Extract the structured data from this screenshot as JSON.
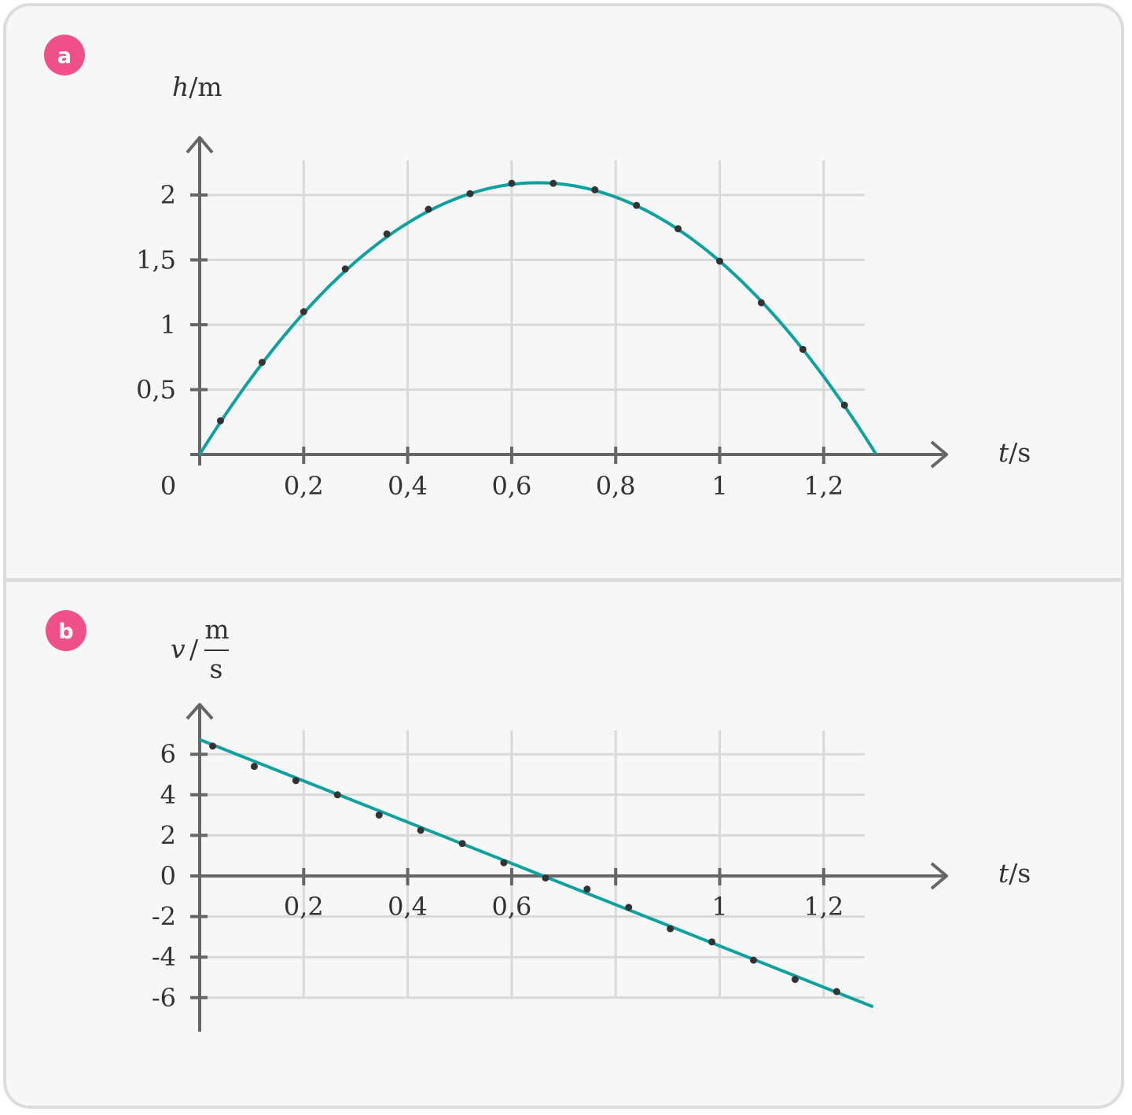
{
  "colors": {
    "curve": "#0fa0a0",
    "points": "#333333",
    "axis": "#666666",
    "grid": "#d9d9d9",
    "badge": "#f0508a"
  },
  "chart_data": [
    {
      "id": "a",
      "badge": "a",
      "type": "scatter",
      "title": "",
      "xlabel": {
        "symbol": "t",
        "unit": "s"
      },
      "ylabel": {
        "symbol": "h",
        "unit": "m"
      },
      "xlim": [
        0,
        1.35
      ],
      "ylim": [
        0,
        2.2
      ],
      "grid": true,
      "origin_label": "0",
      "xticks": [
        0.2,
        0.4,
        0.6,
        0.8,
        1.0,
        1.2
      ],
      "xtick_labels": [
        "0,2",
        "0,4",
        "0,6",
        "0,8",
        "1",
        "1,2"
      ],
      "yticks": [
        0.5,
        1.0,
        1.5,
        2.0
      ],
      "ytick_labels": [
        "0,5",
        "1",
        "1,5",
        "2"
      ],
      "points": [
        {
          "t": 0.04,
          "h": 0.26
        },
        {
          "t": 0.12,
          "h": 0.71
        },
        {
          "t": 0.2,
          "h": 1.1
        },
        {
          "t": 0.28,
          "h": 1.43
        },
        {
          "t": 0.36,
          "h": 1.7
        },
        {
          "t": 0.44,
          "h": 1.89
        },
        {
          "t": 0.52,
          "h": 2.01
        },
        {
          "t": 0.6,
          "h": 2.09
        },
        {
          "t": 0.68,
          "h": 2.09
        },
        {
          "t": 0.76,
          "h": 2.04
        },
        {
          "t": 0.84,
          "h": 1.92
        },
        {
          "t": 0.92,
          "h": 1.74
        },
        {
          "t": 1.0,
          "h": 1.49
        },
        {
          "t": 1.08,
          "h": 1.17
        },
        {
          "t": 1.16,
          "h": 0.81
        },
        {
          "t": 1.24,
          "h": 0.38
        }
      ],
      "fit": {
        "type": "quadratic",
        "a": -4.95,
        "b": 6.44,
        "c": 0,
        "x_range": [
          0,
          1.3
        ]
      }
    },
    {
      "id": "b",
      "badge": "b",
      "type": "scatter",
      "title": "",
      "xlabel": {
        "symbol": "t",
        "unit": "s"
      },
      "ylabel": {
        "symbol": "v",
        "unit_num": "m",
        "unit_den": "s"
      },
      "xlim": [
        0,
        1.35
      ],
      "ylim": [
        -7.6,
        8.2
      ],
      "grid": true,
      "xticks": [
        0.2,
        0.4,
        0.6,
        1.0,
        1.2
      ],
      "xtick_labels": [
        "0,2",
        "0,4",
        "0,6",
        "1",
        "1,2"
      ],
      "grid_x": [
        0.2,
        0.4,
        0.6,
        0.8,
        1.0,
        1.2
      ],
      "yticks": [
        6,
        4,
        2,
        0,
        -2,
        -4,
        -6
      ],
      "ytick_labels": [
        "6",
        "4",
        "2",
        "0",
        "-2",
        "-4",
        "-6"
      ],
      "points": [
        {
          "t": 0.025,
          "v": 6.4
        },
        {
          "t": 0.105,
          "v": 5.4
        },
        {
          "t": 0.185,
          "v": 4.7
        },
        {
          "t": 0.265,
          "v": 4.0
        },
        {
          "t": 0.345,
          "v": 3.0
        },
        {
          "t": 0.425,
          "v": 2.25
        },
        {
          "t": 0.505,
          "v": 1.6
        },
        {
          "t": 0.585,
          "v": 0.65
        },
        {
          "t": 0.665,
          "v": -0.1
        },
        {
          "t": 0.745,
          "v": -0.65
        },
        {
          "t": 0.825,
          "v": -1.55
        },
        {
          "t": 0.905,
          "v": -2.6
        },
        {
          "t": 0.985,
          "v": -3.25
        },
        {
          "t": 1.065,
          "v": -4.15
        },
        {
          "t": 1.145,
          "v": -5.1
        },
        {
          "t": 1.225,
          "v": -5.7
        }
      ],
      "fit": {
        "type": "linear",
        "slope": -10.17,
        "intercept": 6.72,
        "x_range": [
          0,
          1.295
        ]
      }
    }
  ]
}
